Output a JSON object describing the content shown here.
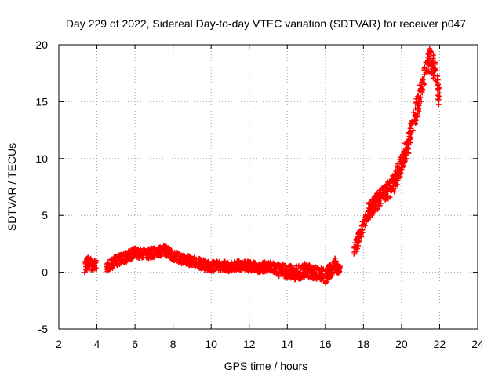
{
  "chart_data": {
    "type": "scatter",
    "title": "Day 229 of 2022, Sidereal Day-to-day VTEC variation (SDTVAR) for receiver p047",
    "xlabel": "GPS time / hours",
    "ylabel": "SDTVAR / TECUs",
    "xlim": [
      2,
      24
    ],
    "ylim": [
      -5,
      20
    ],
    "xticks": [
      "2",
      "4",
      "6",
      "8",
      "10",
      "12",
      "14",
      "16",
      "18",
      "20",
      "22",
      "24"
    ],
    "yticks": [
      "-5",
      "0",
      "5",
      "10",
      "15",
      "20"
    ],
    "grid": true,
    "marker": "+",
    "color": "#ff0000",
    "series": [
      {
        "name": "p047 SDTVAR",
        "trend": [
          [
            3.35,
            0.5
          ],
          [
            3.5,
            0.8
          ],
          [
            3.9,
            0.6
          ],
          [
            4.5,
            0.4
          ],
          [
            5.0,
            1.0
          ],
          [
            5.5,
            1.3
          ],
          [
            6.0,
            1.7
          ],
          [
            6.5,
            1.6
          ],
          [
            7.0,
            1.7
          ],
          [
            7.5,
            1.9
          ],
          [
            8.0,
            1.5
          ],
          [
            8.5,
            1.1
          ],
          [
            9.0,
            1.0
          ],
          [
            9.5,
            0.7
          ],
          [
            10.0,
            0.5
          ],
          [
            10.5,
            0.6
          ],
          [
            11.0,
            0.4
          ],
          [
            11.5,
            0.6
          ],
          [
            12.0,
            0.5
          ],
          [
            12.5,
            0.4
          ],
          [
            13.0,
            0.5
          ],
          [
            13.5,
            0.3
          ],
          [
            14.0,
            0.0
          ],
          [
            14.5,
            -0.1
          ],
          [
            15.0,
            0.2
          ],
          [
            15.5,
            0.0
          ],
          [
            16.0,
            -0.4
          ],
          [
            16.5,
            0.6
          ],
          [
            16.8,
            0.5
          ],
          [
            17.5,
            1.8
          ],
          [
            17.8,
            3.2
          ],
          [
            18.2,
            5.2
          ],
          [
            18.7,
            6.2
          ],
          [
            19.2,
            7.0
          ],
          [
            19.6,
            7.8
          ],
          [
            20.0,
            9.5
          ],
          [
            20.4,
            11.5
          ],
          [
            20.8,
            14.5
          ],
          [
            21.2,
            17.0
          ],
          [
            21.5,
            18.8
          ],
          [
            21.8,
            17.5
          ],
          [
            22.0,
            15.0
          ]
        ],
        "bands": [
          {
            "from": 3.35,
            "to": 4.0,
            "spread": 1.1
          },
          {
            "from": 4.5,
            "to": 13.5,
            "spread": 0.9
          },
          {
            "from": 13.5,
            "to": 16.8,
            "spread": 1.3
          },
          {
            "from": 17.5,
            "to": 22.0,
            "spread": 2.0
          }
        ]
      }
    ]
  }
}
